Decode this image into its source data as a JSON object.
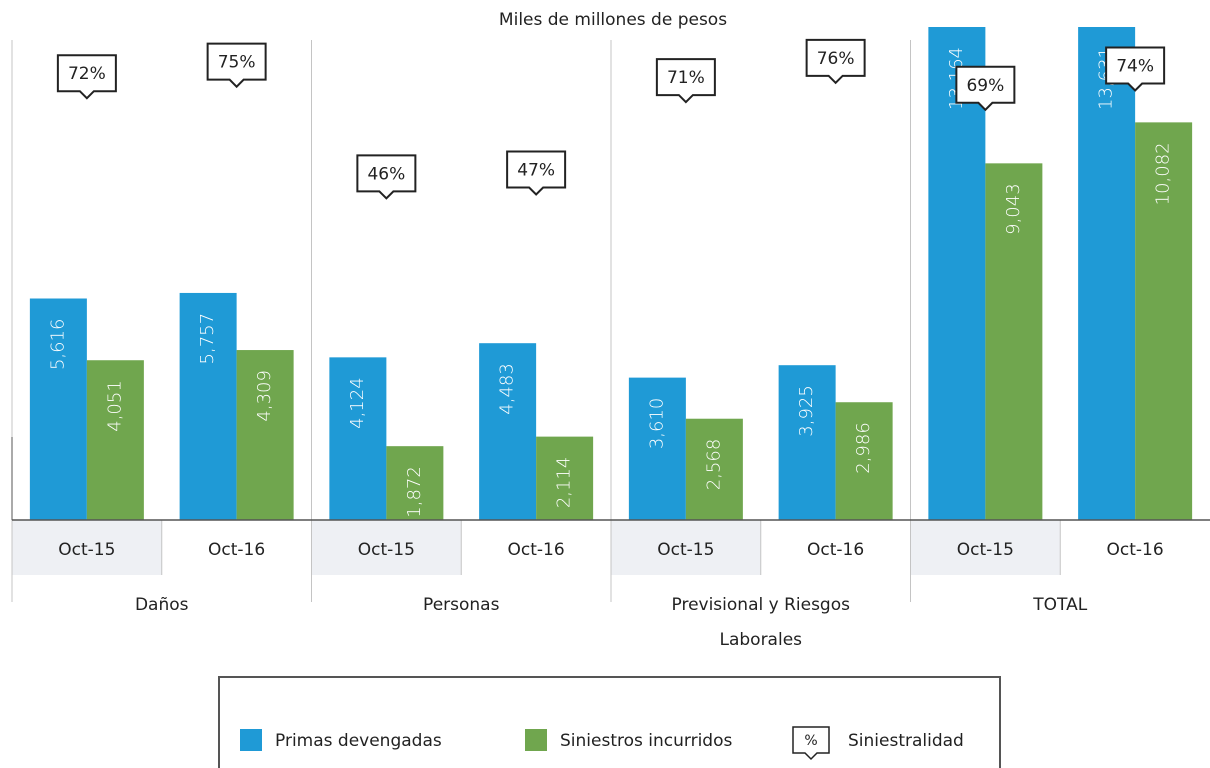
{
  "chart_data": {
    "type": "bar",
    "title": "Miles de millones de pesos",
    "groups": [
      "Daños",
      "Personas",
      "Previsional y Riesgos Laborales",
      "TOTAL"
    ],
    "categories": [
      "Oct-15",
      "Oct-16",
      "Oct-15",
      "Oct-16",
      "Oct-15",
      "Oct-16",
      "Oct-15",
      "Oct-16"
    ],
    "series": [
      {
        "name": "Primas devengadas",
        "color": "#1f9ad6",
        "values": [
          5616,
          5757,
          4124,
          4483,
          3610,
          3925,
          13164,
          13631
        ],
        "value_labels": [
          "5,616",
          "5,757",
          "4,124",
          "4,483",
          "3,610",
          "3,925",
          "13,164",
          "13,631"
        ]
      },
      {
        "name": "Siniestros incurridos",
        "color": "#70a64e",
        "values": [
          4051,
          4309,
          1872,
          2114,
          2568,
          2986,
          9043,
          10082
        ],
        "value_labels": [
          "4,051",
          "4,309",
          "1,872",
          "2,114",
          "2,568",
          "2,986",
          "9,043",
          "10,082"
        ]
      },
      {
        "name": "Siniestralidad",
        "type": "callout",
        "axis": "y2",
        "symbol": "%",
        "values": [
          72,
          75,
          46,
          47,
          71,
          76,
          69,
          74
        ],
        "value_labels": [
          "72%",
          "75%",
          "46%",
          "47%",
          "71%",
          "76%",
          "69%",
          "74%"
        ]
      }
    ],
    "ylim": [
      0,
      12500
    ],
    "y2lim": [
      -44,
      84
    ]
  }
}
